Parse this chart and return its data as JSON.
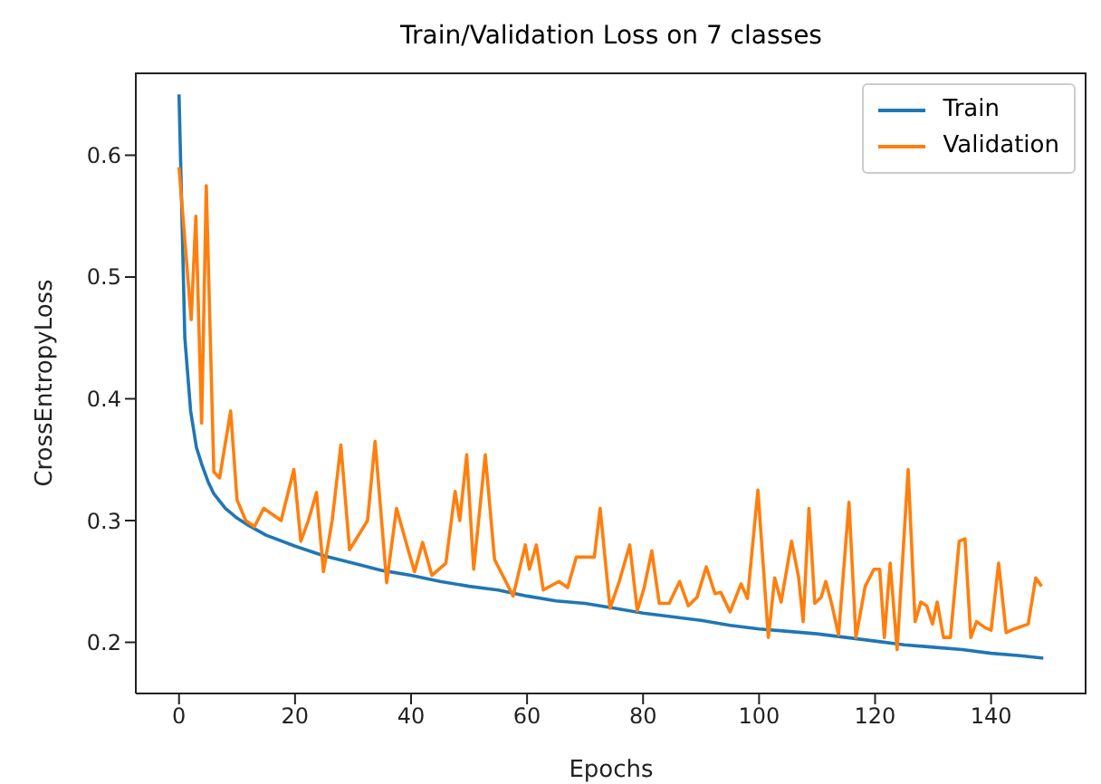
{
  "chart_data": {
    "type": "line",
    "title": "Train/Validation Loss on 7 classes",
    "xlabel": "Epochs",
    "ylabel": "CrossEntropyLoss",
    "xlim": [
      -7.45,
      156.45
    ],
    "xticks": [
      0,
      20,
      40,
      60,
      80,
      100,
      120,
      140
    ],
    "ylim": [
      0.158,
      0.668
    ],
    "yticks": [
      0.2,
      0.3,
      0.4,
      0.5,
      0.6
    ],
    "grid": false,
    "legend": "top right",
    "marker": "none",
    "line_style": "solid",
    "series": [
      {
        "name": "Train",
        "color": "#1f77b4",
        "x": [
          0,
          1,
          2,
          3,
          4,
          5,
          6,
          8,
          10,
          12,
          15,
          20,
          25,
          30,
          35,
          40,
          45,
          50,
          55,
          60,
          65,
          70,
          75,
          80,
          85,
          90,
          95,
          100,
          105,
          110,
          115,
          120,
          125,
          130,
          135,
          140,
          145,
          149
        ],
        "values": [
          0.65,
          0.45,
          0.39,
          0.36,
          0.345,
          0.332,
          0.322,
          0.31,
          0.302,
          0.296,
          0.288,
          0.279,
          0.271,
          0.265,
          0.259,
          0.255,
          0.25,
          0.246,
          0.243,
          0.238,
          0.234,
          0.232,
          0.228,
          0.224,
          0.221,
          0.218,
          0.214,
          0.211,
          0.209,
          0.207,
          0.204,
          0.201,
          0.198,
          0.196,
          0.194,
          0.191,
          0.189,
          0.187
        ]
      },
      {
        "name": "Validation",
        "color": "#ff7f0e",
        "x": [
          0,
          2.1,
          2.9,
          3.9,
          4.7,
          6,
          7,
          8.9,
          10,
          11.5,
          13,
          14.6,
          17.6,
          19.8,
          21,
          22.3,
          23.7,
          24.9,
          26.4,
          27.9,
          29.4,
          32.5,
          33.8,
          35.8,
          37.5,
          39.5,
          40.6,
          42,
          43.6,
          46,
          47.6,
          48.4,
          49.6,
          50.8,
          52.8,
          54.4,
          57.6,
          59.7,
          60.4,
          61.6,
          62.8,
          65.5,
          67,
          68.5,
          71.6,
          72.6,
          74.3,
          75.9,
          77.7,
          79,
          80.2,
          81.5,
          82.8,
          84.5,
          86.3,
          87.8,
          89.3,
          90.9,
          92.4,
          93.4,
          95,
          96.9,
          98,
          99.8,
          101.6,
          102.7,
          103.8,
          105.6,
          106.8,
          107.6,
          108.6,
          109.6,
          110.7,
          111.5,
          112.5,
          113.7,
          115.5,
          116.7,
          118.3,
          119.8,
          120.8,
          121.6,
          122.6,
          123.8,
          125.7,
          126.9,
          127.9,
          128.9,
          129.9,
          130.7,
          131.8,
          133,
          134.5,
          135.5,
          136.5,
          137.5,
          139,
          140,
          141.3,
          142.6,
          144,
          146.4,
          147.7,
          148.7
        ],
        "values": [
          0.59,
          0.465,
          0.55,
          0.38,
          0.575,
          0.34,
          0.335,
          0.39,
          0.317,
          0.3,
          0.295,
          0.31,
          0.3,
          0.342,
          0.283,
          0.3,
          0.323,
          0.258,
          0.3,
          0.362,
          0.276,
          0.3,
          0.365,
          0.249,
          0.31,
          0.276,
          0.258,
          0.282,
          0.255,
          0.265,
          0.324,
          0.3,
          0.354,
          0.26,
          0.354,
          0.268,
          0.238,
          0.28,
          0.26,
          0.28,
          0.243,
          0.25,
          0.245,
          0.27,
          0.27,
          0.31,
          0.228,
          0.25,
          0.28,
          0.226,
          0.245,
          0.275,
          0.232,
          0.232,
          0.25,
          0.23,
          0.237,
          0.262,
          0.24,
          0.241,
          0.225,
          0.248,
          0.236,
          0.325,
          0.204,
          0.253,
          0.233,
          0.283,
          0.254,
          0.217,
          0.31,
          0.232,
          0.237,
          0.25,
          0.232,
          0.206,
          0.315,
          0.204,
          0.246,
          0.26,
          0.26,
          0.204,
          0.265,
          0.194,
          0.342,
          0.217,
          0.233,
          0.23,
          0.215,
          0.233,
          0.204,
          0.204,
          0.283,
          0.285,
          0.204,
          0.217,
          0.212,
          0.21,
          0.265,
          0.208,
          0.211,
          0.215,
          0.253,
          0.246
        ]
      }
    ]
  }
}
